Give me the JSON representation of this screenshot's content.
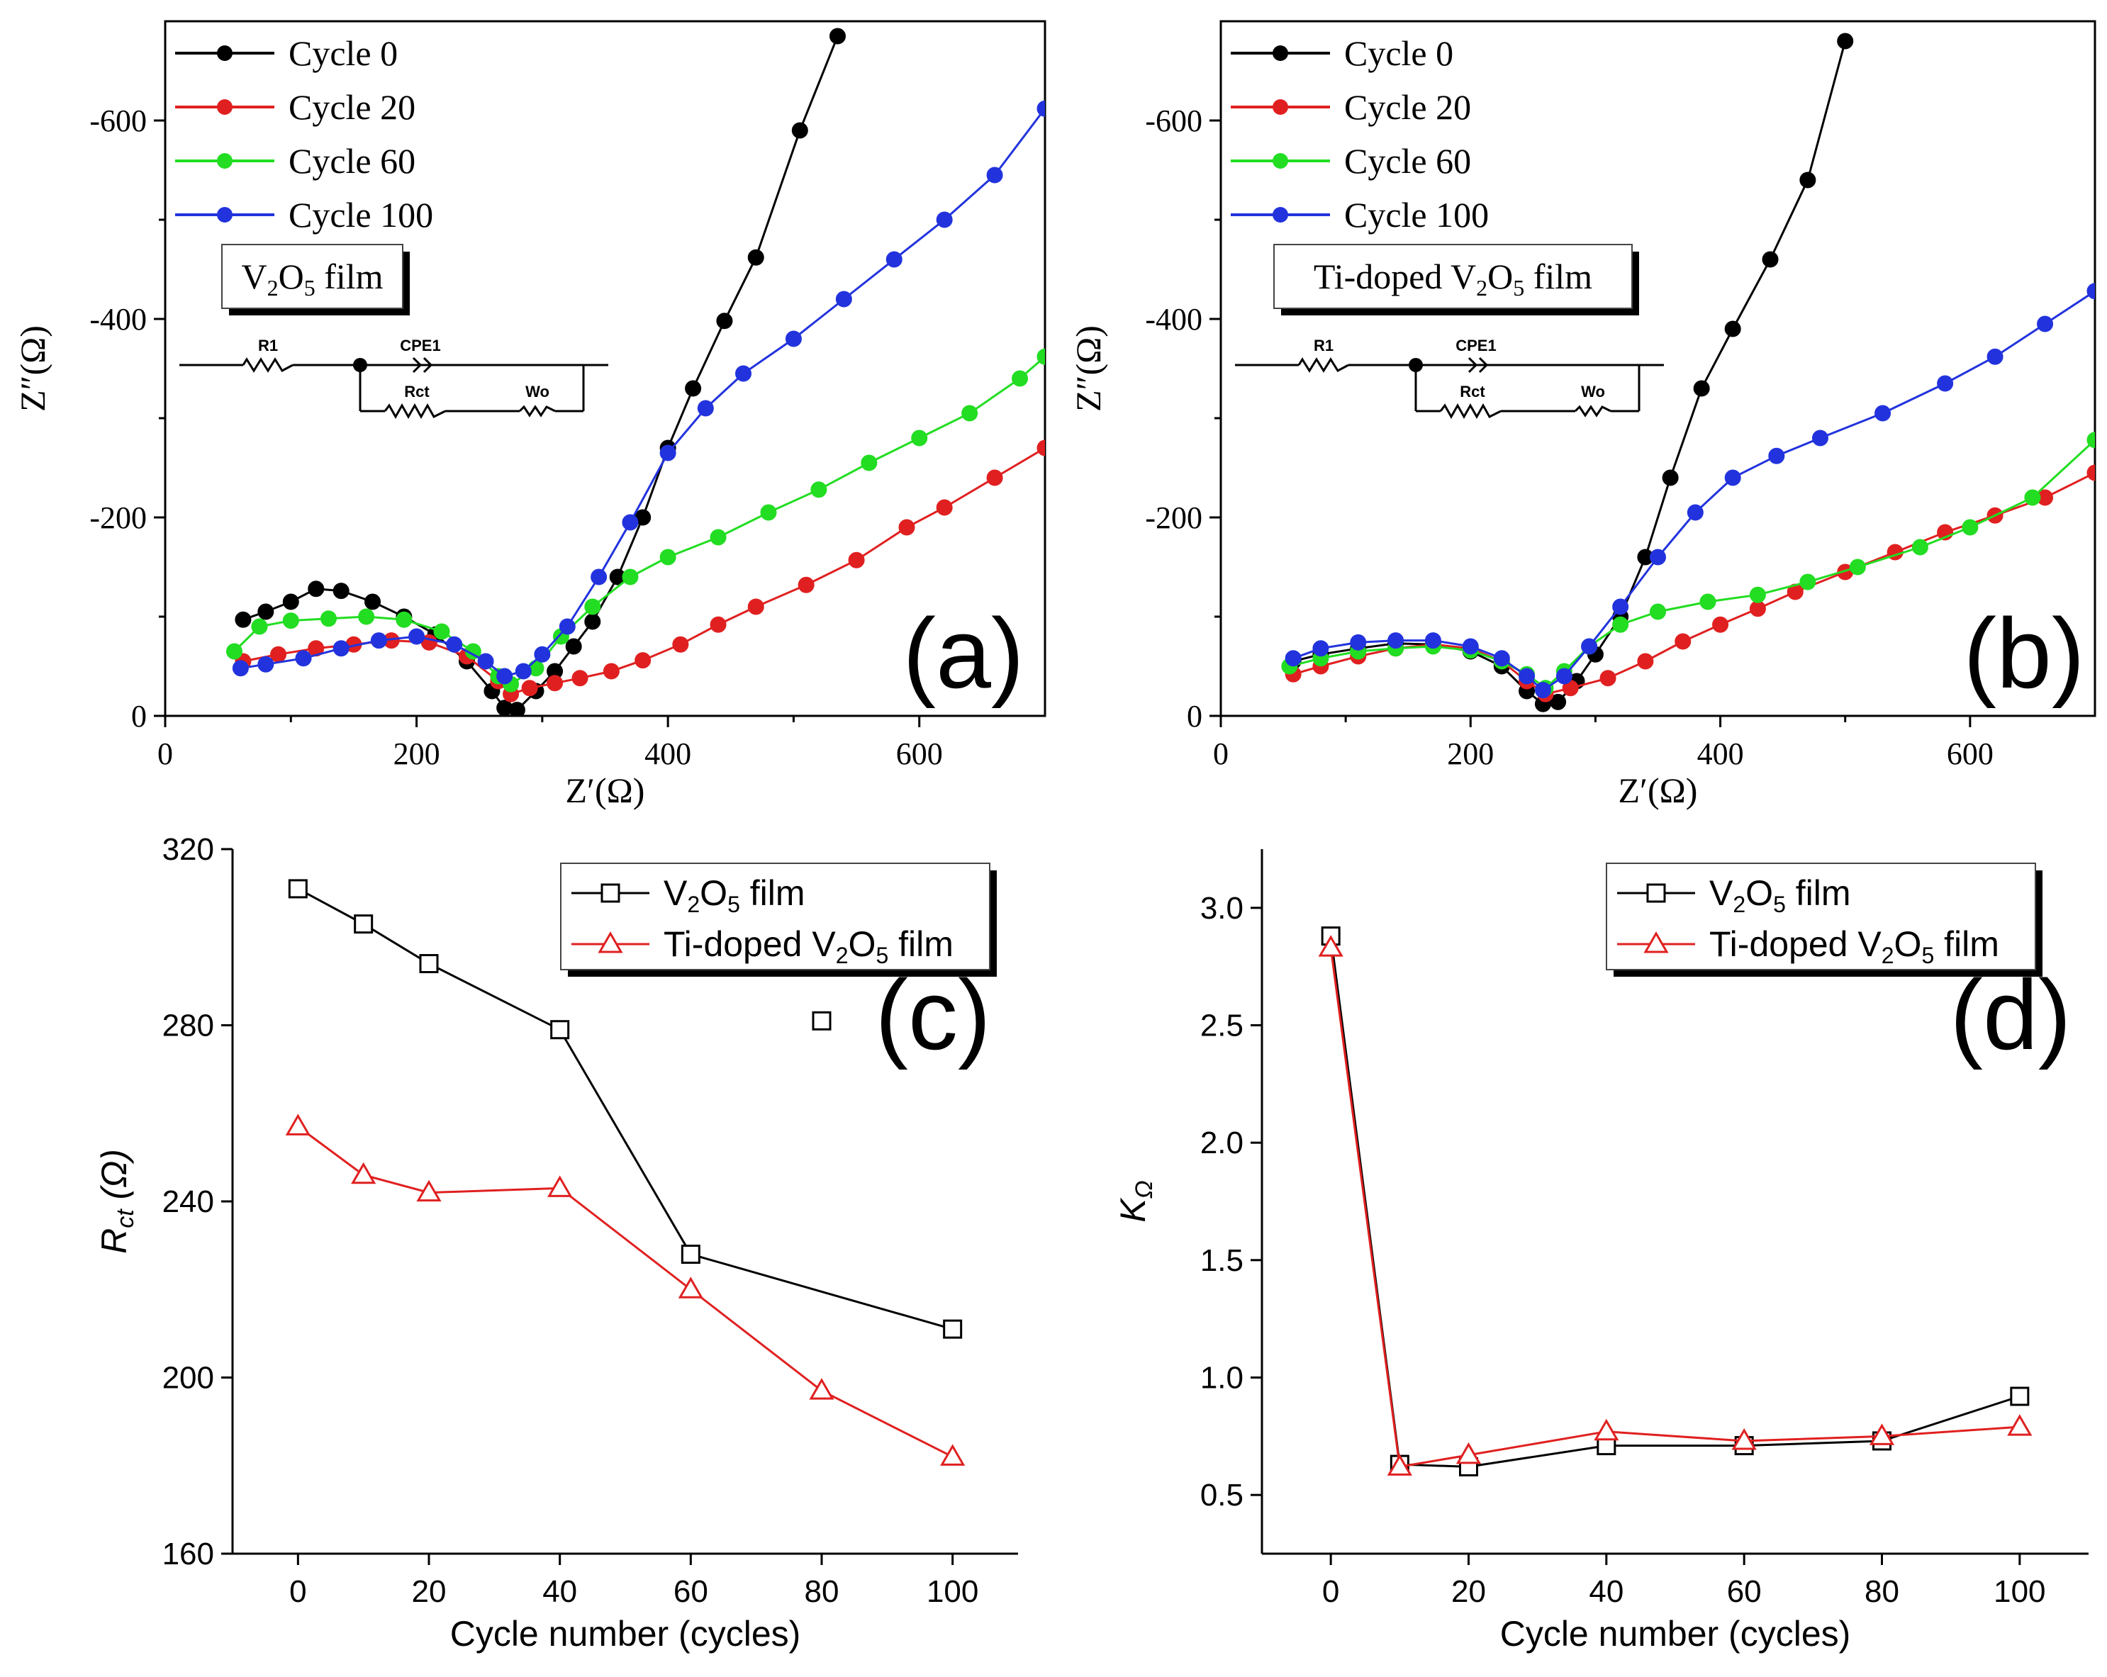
{
  "chart_data": [
    {
      "panel": "(a)",
      "type": "scatter",
      "title": "",
      "xlabel": "Z′(Ω)",
      "ylabel": "Z″(Ω)",
      "xlim": [
        0,
        700
      ],
      "ylim": [
        0,
        -700
      ],
      "xticks": [
        0,
        200,
        400,
        600
      ],
      "xtick_labels": [
        "0",
        "200",
        "400",
        "600"
      ],
      "yticks": [
        0,
        -200,
        -400,
        -600
      ],
      "ytick_labels": [
        "0",
        "-200",
        "-400",
        "-600"
      ],
      "legend_position": "top-left",
      "film_label": "V2O5 film",
      "circuit_labels": {
        "r1": "R1",
        "cpe": "CPE1",
        "rct": "Rct",
        "wo": "Wo"
      },
      "series": [
        {
          "name": "Cycle 0",
          "color": "#000000",
          "points": [
            [
              62,
              -97
            ],
            [
              80,
              -105
            ],
            [
              100,
              -115
            ],
            [
              120,
              -128
            ],
            [
              140,
              -126
            ],
            [
              165,
              -115
            ],
            [
              190,
              -100
            ],
            [
              215,
              -82
            ],
            [
              240,
              -55
            ],
            [
              260,
              -25
            ],
            [
              270,
              -8
            ],
            [
              280,
              -6
            ],
            [
              295,
              -25
            ],
            [
              310,
              -45
            ],
            [
              325,
              -70
            ],
            [
              340,
              -95
            ],
            [
              360,
              -140
            ],
            [
              380,
              -200
            ],
            [
              400,
              -270
            ],
            [
              420,
              -330
            ],
            [
              445,
              -398
            ],
            [
              470,
              -462
            ],
            [
              505,
              -590
            ],
            [
              535,
              -685
            ]
          ]
        },
        {
          "name": "Cycle 20",
          "color": "#e02020",
          "points": [
            [
              62,
              -55
            ],
            [
              90,
              -62
            ],
            [
              120,
              -68
            ],
            [
              150,
              -72
            ],
            [
              180,
              -76
            ],
            [
              210,
              -74
            ],
            [
              240,
              -60
            ],
            [
              265,
              -35
            ],
            [
              275,
              -22
            ],
            [
              290,
              -28
            ],
            [
              310,
              -33
            ],
            [
              330,
              -38
            ],
            [
              355,
              -45
            ],
            [
              380,
              -56
            ],
            [
              410,
              -72
            ],
            [
              440,
              -92
            ],
            [
              470,
              -110
            ],
            [
              510,
              -132
            ],
            [
              550,
              -157
            ],
            [
              590,
              -190
            ],
            [
              620,
              -210
            ],
            [
              660,
              -240
            ],
            [
              700,
              -270
            ]
          ]
        },
        {
          "name": "Cycle 60",
          "color": "#22dd22",
          "points": [
            [
              55,
              -65
            ],
            [
              75,
              -90
            ],
            [
              100,
              -96
            ],
            [
              130,
              -98
            ],
            [
              160,
              -100
            ],
            [
              190,
              -97
            ],
            [
              220,
              -85
            ],
            [
              245,
              -65
            ],
            [
              265,
              -40
            ],
            [
              275,
              -32
            ],
            [
              295,
              -48
            ],
            [
              315,
              -80
            ],
            [
              340,
              -110
            ],
            [
              370,
              -140
            ],
            [
              400,
              -160
            ],
            [
              440,
              -180
            ],
            [
              480,
              -205
            ],
            [
              520,
              -228
            ],
            [
              560,
              -255
            ],
            [
              600,
              -280
            ],
            [
              640,
              -305
            ],
            [
              680,
              -340
            ],
            [
              700,
              -362
            ]
          ]
        },
        {
          "name": "Cycle 100",
          "color": "#2233dd",
          "points": [
            [
              60,
              -48
            ],
            [
              80,
              -52
            ],
            [
              110,
              -58
            ],
            [
              140,
              -68
            ],
            [
              170,
              -76
            ],
            [
              200,
              -80
            ],
            [
              230,
              -72
            ],
            [
              255,
              -55
            ],
            [
              270,
              -40
            ],
            [
              285,
              -45
            ],
            [
              300,
              -62
            ],
            [
              320,
              -90
            ],
            [
              345,
              -140
            ],
            [
              370,
              -195
            ],
            [
              400,
              -265
            ],
            [
              430,
              -310
            ],
            [
              460,
              -345
            ],
            [
              500,
              -380
            ],
            [
              540,
              -420
            ],
            [
              580,
              -460
            ],
            [
              620,
              -500
            ],
            [
              660,
              -545
            ],
            [
              700,
              -612
            ]
          ]
        }
      ]
    },
    {
      "panel": "(b)",
      "type": "scatter",
      "title": "",
      "xlabel": "Z′(Ω)",
      "ylabel": "Z″(Ω)",
      "xlim": [
        0,
        700
      ],
      "ylim": [
        0,
        -700
      ],
      "xticks": [
        0,
        200,
        400,
        600
      ],
      "xtick_labels": [
        "0",
        "200",
        "400",
        "600"
      ],
      "yticks": [
        0,
        -200,
        -400,
        -600
      ],
      "ytick_labels": [
        "0",
        "-200",
        "-400",
        "-600"
      ],
      "legend_position": "top-left",
      "film_label": "Ti-doped V2O5 film",
      "circuit_labels": {
        "r1": "R1",
        "cpe": "CPE1",
        "rct": "Rct",
        "wo": "Wo"
      },
      "series": [
        {
          "name": "Cycle 0",
          "color": "#000000",
          "points": [
            [
              58,
              -55
            ],
            [
              80,
              -62
            ],
            [
              110,
              -68
            ],
            [
              140,
              -73
            ],
            [
              170,
              -72
            ],
            [
              200,
              -65
            ],
            [
              225,
              -50
            ],
            [
              245,
              -25
            ],
            [
              258,
              -12
            ],
            [
              270,
              -14
            ],
            [
              285,
              -35
            ],
            [
              300,
              -62
            ],
            [
              320,
              -100
            ],
            [
              340,
              -160
            ],
            [
              360,
              -240
            ],
            [
              385,
              -330
            ],
            [
              410,
              -390
            ],
            [
              440,
              -460
            ],
            [
              470,
              -540
            ],
            [
              500,
              -680
            ]
          ]
        },
        {
          "name": "Cycle 20",
          "color": "#e02020",
          "points": [
            [
              58,
              -42
            ],
            [
              80,
              -50
            ],
            [
              110,
              -60
            ],
            [
              140,
              -68
            ],
            [
              170,
              -72
            ],
            [
              200,
              -68
            ],
            [
              225,
              -55
            ],
            [
              245,
              -35
            ],
            [
              260,
              -22
            ],
            [
              280,
              -28
            ],
            [
              310,
              -38
            ],
            [
              340,
              -55
            ],
            [
              370,
              -75
            ],
            [
              400,
              -92
            ],
            [
              430,
              -108
            ],
            [
              460,
              -125
            ],
            [
              500,
              -145
            ],
            [
              540,
              -165
            ],
            [
              580,
              -185
            ],
            [
              620,
              -202
            ],
            [
              660,
              -220
            ],
            [
              700,
              -245
            ]
          ]
        },
        {
          "name": "Cycle 60",
          "color": "#22dd22",
          "points": [
            [
              55,
              -50
            ],
            [
              80,
              -58
            ],
            [
              110,
              -65
            ],
            [
              140,
              -68
            ],
            [
              170,
              -70
            ],
            [
              200,
              -66
            ],
            [
              225,
              -55
            ],
            [
              245,
              -42
            ],
            [
              260,
              -28
            ],
            [
              275,
              -45
            ],
            [
              295,
              -70
            ],
            [
              320,
              -92
            ],
            [
              350,
              -105
            ],
            [
              390,
              -115
            ],
            [
              430,
              -122
            ],
            [
              470,
              -135
            ],
            [
              510,
              -150
            ],
            [
              560,
              -170
            ],
            [
              600,
              -190
            ],
            [
              650,
              -220
            ],
            [
              700,
              -278
            ]
          ]
        },
        {
          "name": "Cycle 100",
          "color": "#2233dd",
          "points": [
            [
              58,
              -58
            ],
            [
              80,
              -68
            ],
            [
              110,
              -74
            ],
            [
              140,
              -76
            ],
            [
              170,
              -76
            ],
            [
              200,
              -70
            ],
            [
              225,
              -58
            ],
            [
              245,
              -40
            ],
            [
              258,
              -26
            ],
            [
              275,
              -40
            ],
            [
              295,
              -70
            ],
            [
              320,
              -110
            ],
            [
              350,
              -160
            ],
            [
              380,
              -205
            ],
            [
              410,
              -240
            ],
            [
              445,
              -262
            ],
            [
              480,
              -280
            ],
            [
              530,
              -305
            ],
            [
              580,
              -335
            ],
            [
              620,
              -362
            ],
            [
              660,
              -395
            ],
            [
              700,
              -428
            ]
          ]
        }
      ]
    },
    {
      "panel": "(c)",
      "type": "line",
      "title": "",
      "xlabel": "Cycle number (cycles)",
      "ylabel": "R_ct (Ω)",
      "xlim": [
        -10,
        110
      ],
      "ylim": [
        160,
        320
      ],
      "xticks": [
        0,
        20,
        40,
        60,
        80,
        100
      ],
      "xtick_labels": [
        "0",
        "20",
        "40",
        "60",
        "80",
        "100"
      ],
      "yticks": [
        160,
        200,
        240,
        280,
        320
      ],
      "ytick_labels": [
        "160",
        "200",
        "240",
        "280",
        "320"
      ],
      "legend_position": "top-right",
      "series": [
        {
          "name": "V2O5 film",
          "color": "#000000",
          "marker": "square",
          "x": [
            0,
            10,
            20,
            40,
            60,
            100
          ],
          "values": [
            311,
            303,
            294,
            279,
            228,
            211
          ]
        },
        {
          "name": "Ti-doped V2O5 film",
          "color": "#e02020",
          "marker": "triangle",
          "x": [
            0,
            10,
            20,
            40,
            60,
            80,
            100
          ],
          "values": [
            257,
            246,
            242,
            243,
            220,
            197,
            182
          ]
        }
      ],
      "outlier_points": [
        {
          "series": "V2O5 film",
          "x": 80,
          "value": 281
        }
      ]
    },
    {
      "panel": "(d)",
      "type": "line",
      "title": "",
      "xlabel": "Cycle number (cycles)",
      "ylabel": "K_Ω",
      "xlim": [
        -10,
        110
      ],
      "ylim": [
        0.25,
        3.25
      ],
      "xticks": [
        0,
        20,
        40,
        60,
        80,
        100
      ],
      "xtick_labels": [
        "0",
        "20",
        "40",
        "60",
        "80",
        "100"
      ],
      "yticks": [
        0.5,
        1.0,
        1.5,
        2.0,
        2.5,
        3.0
      ],
      "ytick_labels": [
        "0.5",
        "1.0",
        "1.5",
        "2.0",
        "2.5",
        "3.0"
      ],
      "legend_position": "top-right",
      "series": [
        {
          "name": "V2O5 film",
          "color": "#000000",
          "marker": "square",
          "x": [
            0,
            10,
            20,
            40,
            60,
            80,
            100
          ],
          "values": [
            2.88,
            0.63,
            0.62,
            0.71,
            0.71,
            0.73,
            0.92
          ]
        },
        {
          "name": "Ti-doped V2O5 film",
          "color": "#e02020",
          "marker": "triangle",
          "x": [
            0,
            10,
            20,
            40,
            60,
            80,
            100
          ],
          "values": [
            2.83,
            0.62,
            0.67,
            0.77,
            0.73,
            0.75,
            0.79
          ]
        }
      ]
    }
  ]
}
